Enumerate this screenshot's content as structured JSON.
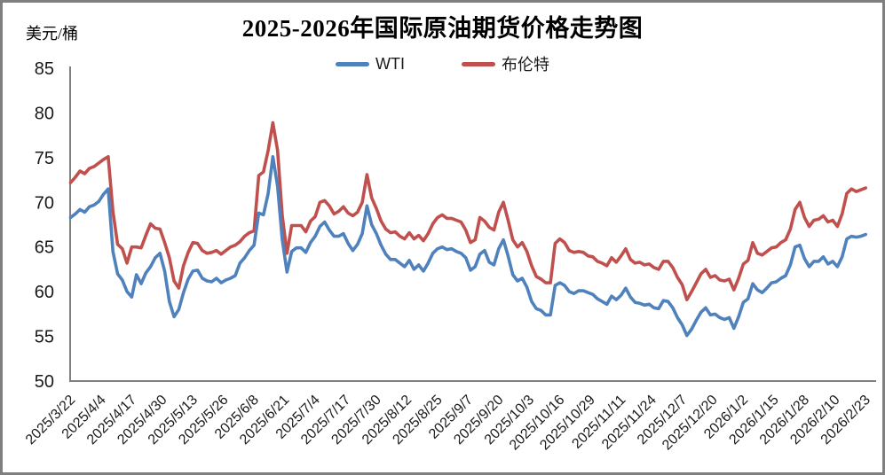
{
  "header": {
    "title": "2025-2026年国际原油期货价格走势图",
    "y_unit_label": "美元/桶"
  },
  "legend": [
    {
      "label": "WTI",
      "color": "#4F81BD"
    },
    {
      "label": "布伦特",
      "color": "#C0504D"
    }
  ],
  "chart_data": {
    "type": "line",
    "title": "2025-2026年国际原油期货价格走势图",
    "ylabel": "美元/桶",
    "xlabel": "",
    "ylim": [
      50,
      85
    ],
    "y_ticks": [
      85,
      80,
      75,
      70,
      65,
      60,
      55,
      50
    ],
    "grid": false,
    "legend_position": "top-center",
    "axis_color": "#808080",
    "x_label_rotation": -45,
    "x_tick_labels": [
      "2025/3/22",
      "2025/4/4",
      "2025/4/17",
      "2025/4/30",
      "2025/5/13",
      "2025/5/26",
      "2025/6/8",
      "2025/6/21",
      "2025/7/4",
      "2025/7/17",
      "2025/7/30",
      "2025/8/12",
      "2025/8/25",
      "2025/9/7",
      "2025/9/20",
      "2025/10/3",
      "2025/10/16",
      "2025/10/29",
      "2025/11/11",
      "2025/11/24",
      "2025/12/7",
      "2025/12/20",
      "2026/1/2",
      "2026/1/15",
      "2026/1/28",
      "2026/2/10",
      "2026/2/23"
    ],
    "x_tick_day_step": 13,
    "x_day_step": 2,
    "x_sampling_note": "daily price series sampled every 2 days, day 0 = 2025/3/22, day 338 = 2026/2/23",
    "series": [
      {
        "name": "WTI",
        "color": "#4F81BD",
        "values": [
          68.3,
          68.7,
          69.2,
          68.9,
          69.5,
          69.7,
          70.1,
          70.9,
          71.5,
          64.5,
          62.0,
          61.3,
          60.0,
          59.4,
          61.9,
          60.9,
          62.1,
          62.8,
          63.8,
          64.3,
          62.3,
          58.9,
          57.2,
          58.0,
          59.9,
          61.4,
          62.3,
          62.4,
          61.5,
          61.2,
          61.1,
          61.5,
          61.0,
          61.3,
          61.5,
          61.8,
          63.2,
          63.8,
          64.6,
          65.2,
          68.8,
          68.6,
          71.0,
          75.1,
          71.8,
          65.8,
          62.2,
          64.5,
          64.9,
          64.9,
          64.4,
          65.5,
          66.2,
          67.3,
          67.8,
          66.9,
          66.2,
          66.2,
          66.5,
          65.4,
          64.6,
          65.3,
          66.5,
          69.6,
          67.5,
          66.5,
          65.2,
          64.2,
          63.6,
          63.6,
          63.2,
          62.8,
          63.5,
          62.5,
          63.0,
          62.3,
          63.2,
          64.3,
          64.8,
          65.0,
          64.7,
          64.8,
          64.5,
          64.3,
          63.8,
          62.4,
          62.8,
          64.2,
          64.6,
          63.3,
          63.0,
          64.8,
          65.8,
          64.0,
          61.9,
          61.2,
          61.5,
          60.5,
          58.9,
          58.1,
          57.9,
          57.4,
          57.4,
          60.7,
          61.0,
          60.7,
          60.0,
          59.8,
          60.1,
          60.1,
          59.9,
          59.7,
          59.2,
          58.9,
          58.6,
          59.5,
          59.1,
          59.6,
          60.4,
          59.4,
          58.8,
          58.7,
          58.5,
          58.6,
          58.2,
          58.1,
          59.0,
          58.9,
          58.2,
          57.1,
          56.3,
          55.1,
          55.8,
          56.8,
          57.7,
          58.2,
          57.4,
          57.5,
          57.1,
          56.9,
          57.1,
          55.9,
          57.2,
          58.8,
          59.2,
          60.9,
          60.2,
          59.9,
          60.4,
          61.0,
          61.1,
          61.5,
          61.8,
          63.0,
          65.0,
          65.2,
          63.7,
          62.8,
          63.4,
          63.4,
          63.9,
          63.1,
          63.4,
          62.8,
          63.9,
          65.9,
          66.2,
          66.1,
          66.2,
          66.4
        ]
      },
      {
        "name": "布伦特",
        "color": "#C0504D",
        "values": [
          72.2,
          72.8,
          73.5,
          73.2,
          73.8,
          74.0,
          74.4,
          74.8,
          75.1,
          69.0,
          65.3,
          64.8,
          63.2,
          65.0,
          65.0,
          64.9,
          66.3,
          67.6,
          67.1,
          67.0,
          65.5,
          63.8,
          61.2,
          60.4,
          62.9,
          64.4,
          65.5,
          65.4,
          64.6,
          64.3,
          64.4,
          64.6,
          64.2,
          64.6,
          65.0,
          65.2,
          65.6,
          66.2,
          66.6,
          66.8,
          73.0,
          73.4,
          75.8,
          78.9,
          75.8,
          68.5,
          64.3,
          67.4,
          67.4,
          67.4,
          66.7,
          67.9,
          68.4,
          70.0,
          70.2,
          69.6,
          68.7,
          69.0,
          69.5,
          68.8,
          68.5,
          68.9,
          70.0,
          73.1,
          70.5,
          69.3,
          67.9,
          67.0,
          66.6,
          66.7,
          66.2,
          65.9,
          66.6,
          65.9,
          66.3,
          65.7,
          66.5,
          67.6,
          68.3,
          68.6,
          68.2,
          68.2,
          68.0,
          67.8,
          66.9,
          65.5,
          65.8,
          68.3,
          67.9,
          67.2,
          66.9,
          68.9,
          70.0,
          68.0,
          65.8,
          65.0,
          65.5,
          64.5,
          62.9,
          61.7,
          61.4,
          61.0,
          61.0,
          65.4,
          65.9,
          65.5,
          64.6,
          64.4,
          64.5,
          64.4,
          64.0,
          63.9,
          63.4,
          63.2,
          62.9,
          63.8,
          63.3,
          64.0,
          64.8,
          63.6,
          63.2,
          63.3,
          63.0,
          63.1,
          62.7,
          62.5,
          63.4,
          63.4,
          62.7,
          61.6,
          60.8,
          59.1,
          60.0,
          61.0,
          62.0,
          62.5,
          61.6,
          61.8,
          61.3,
          61.2,
          61.4,
          60.2,
          61.5,
          63.1,
          63.5,
          65.5,
          64.3,
          64.1,
          64.5,
          64.9,
          65.0,
          65.5,
          65.8,
          67.0,
          69.2,
          70.0,
          68.3,
          67.3,
          68.0,
          68.1,
          68.5,
          67.8,
          68.0,
          67.3,
          68.7,
          71.0,
          71.5,
          71.2,
          71.4,
          71.6
        ]
      }
    ]
  }
}
